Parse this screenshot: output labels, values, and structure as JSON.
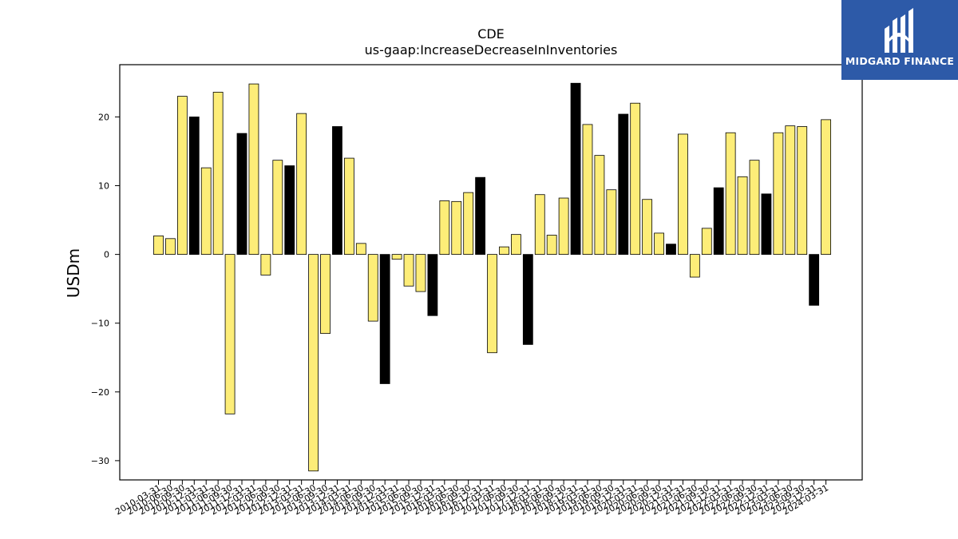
{
  "logo": {
    "text": "MIDGARD FINANCE",
    "icon": "midgard-logo-icon",
    "background": "#2d5aa8"
  },
  "chart_data": {
    "type": "bar",
    "title": "CDE",
    "subtitle": "us-gaap:IncreaseDecreaseInInventories",
    "xlabel": "",
    "ylabel": "USDm",
    "ylim": [
      -32.8,
      27.6
    ],
    "yticks": [
      -30,
      -20,
      -10,
      0,
      10,
      20
    ],
    "ytick_labels": [
      "−30",
      "−20",
      "−10",
      "0",
      "10",
      "20"
    ],
    "colors": {
      "quarter": "#fded78",
      "year_end": "#000000",
      "edge": "#000000"
    },
    "categories": [
      "2010-03-31",
      "2010-06-30",
      "2010-09-30",
      "2010-12-31",
      "2011-03-31",
      "2011-06-30",
      "2011-09-30",
      "2011-12-31",
      "2012-03-31",
      "2012-06-30",
      "2012-09-30",
      "2012-12-31",
      "2013-03-31",
      "2013-06-30",
      "2013-09-30",
      "2013-12-31",
      "2014-03-31",
      "2014-06-30",
      "2014-09-30",
      "2014-12-31",
      "2015-03-31",
      "2015-06-30",
      "2015-09-30",
      "2015-12-31",
      "2016-03-31",
      "2016-06-30",
      "2016-09-30",
      "2016-12-31",
      "2017-03-31",
      "2017-06-30",
      "2017-09-30",
      "2017-12-31",
      "2018-03-31",
      "2018-06-30",
      "2018-09-30",
      "2018-12-31",
      "2019-03-31",
      "2019-06-30",
      "2019-09-30",
      "2019-12-31",
      "2020-03-31",
      "2020-06-30",
      "2020-09-30",
      "2020-12-31",
      "2021-03-31",
      "2021-06-30",
      "2021-09-30",
      "2021-12-31",
      "2022-03-31",
      "2022-06-30",
      "2022-09-30",
      "2022-12-31",
      "2023-03-31",
      "2023-06-30",
      "2023-09-30",
      "2023-12-31",
      "2024-03-31"
    ],
    "values": [
      2.7,
      2.3,
      23.0,
      20.0,
      12.6,
      23.6,
      -23.2,
      17.6,
      24.8,
      -3.0,
      13.7,
      12.9,
      20.5,
      -31.5,
      -11.5,
      18.6,
      14.0,
      1.6,
      -9.7,
      -18.8,
      -0.7,
      -4.6,
      -5.4,
      -8.9,
      7.8,
      7.7,
      9.0,
      11.2,
      -14.3,
      1.1,
      2.9,
      -13.1,
      8.7,
      2.8,
      8.2,
      24.9,
      18.9,
      14.4,
      9.4,
      20.4,
      22.0,
      8.0,
      3.1,
      1.5,
      17.5,
      -3.3,
      3.8,
      9.7,
      17.7,
      11.3,
      13.7,
      8.8,
      17.7,
      18.7,
      18.6,
      -7.4,
      19.6
    ],
    "year_end": [
      false,
      false,
      false,
      true,
      false,
      false,
      false,
      true,
      false,
      false,
      false,
      true,
      false,
      false,
      false,
      true,
      false,
      false,
      false,
      true,
      false,
      false,
      false,
      true,
      false,
      false,
      false,
      true,
      false,
      false,
      false,
      true,
      false,
      false,
      false,
      true,
      false,
      false,
      false,
      true,
      false,
      false,
      false,
      true,
      false,
      false,
      false,
      true,
      false,
      false,
      false,
      true,
      false,
      false,
      false,
      true,
      false
    ],
    "grid": false,
    "legend": "none"
  }
}
